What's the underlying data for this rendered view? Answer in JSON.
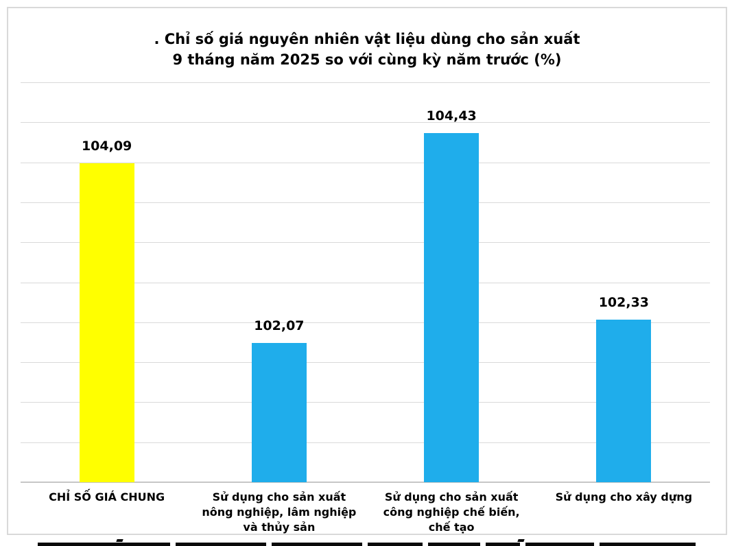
{
  "chart_data": {
    "type": "bar",
    "title_line1": ". Chỉ số giá nguyên nhiên vật liệu dùng cho sản xuất",
    "title_line2": "9 tháng năm 2025 so với cùng kỳ năm trước (%)",
    "categories": [
      "CHỈ SỐ GIÁ CHUNG",
      "Sử dụng cho sản xuất nông nghiệp, lâm nghiệp và thủy sản",
      "Sử dụng cho sản xuất công nghiệp chế biến, chế tạo",
      "Sử dụng cho xây dựng"
    ],
    "values": [
      104.09,
      102.07,
      104.43,
      102.33
    ],
    "value_labels": [
      "104,09",
      "102,07",
      "104,43",
      "102,33"
    ],
    "bar_colors": [
      "#ffff00",
      "#1fadeb",
      "#1fadeb",
      "#1fadeb"
    ],
    "ylim": [
      100.5,
      105
    ],
    "gridline_divisions": 10,
    "grid_on": true,
    "legend_position": "none",
    "xlabel": "",
    "ylabel": ""
  },
  "colors": {
    "grid": "#d9d9d9",
    "axis": "#c6c6c6",
    "frame_border": "#d9d9d9",
    "text": "#000000",
    "background": "#ffffff"
  }
}
